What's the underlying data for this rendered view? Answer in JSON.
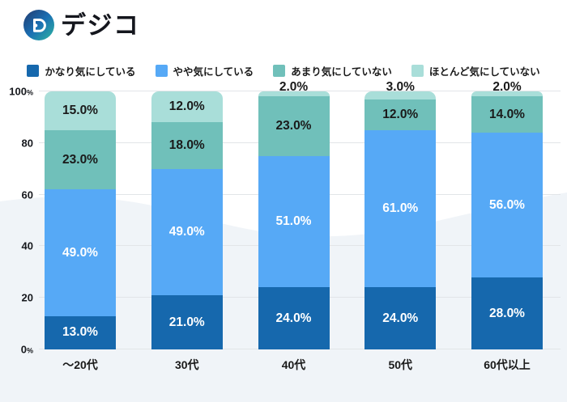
{
  "logo": {
    "text": "デジコ",
    "icon": "digico-d-icon",
    "gradient": [
      "#233a6e",
      "#1a6fb3",
      "#2eb6a1"
    ]
  },
  "background": {
    "wave_color": "#f0f4f8"
  },
  "chart_data": {
    "type": "bar",
    "stacked": true,
    "orientation": "vertical",
    "categories": [
      "～20代",
      "30代",
      "40代",
      "50代",
      "60代以上"
    ],
    "series": [
      {
        "name": "かなり気にしている",
        "color": "#1668ad",
        "label_color": "#ffffff",
        "values": [
          13,
          21,
          24,
          24,
          28
        ],
        "labels": [
          "13.0%",
          "21.0%",
          "24.0%",
          "24.0%",
          "28.0%"
        ]
      },
      {
        "name": "やや気にしている",
        "color": "#56a9f6",
        "label_color": "#ffffff",
        "values": [
          49,
          49,
          51,
          61,
          56
        ],
        "labels": [
          "49.0%",
          "49.0%",
          "51.0%",
          "61.0%",
          "56.0%"
        ]
      },
      {
        "name": "あまり気にしていない",
        "color": "#70c0ba",
        "label_color": "#1a1a1a",
        "values": [
          23,
          18,
          23,
          12,
          14
        ],
        "labels": [
          "23.0%",
          "18.0%",
          "23.0%",
          "12.0%",
          "14.0%"
        ]
      },
      {
        "name": "ほとんど気にしていない",
        "color": "#a9ded9",
        "label_color": "#1a1a1a",
        "values": [
          15,
          12,
          2,
          3,
          2
        ],
        "labels": [
          "15.0%",
          "12.0%",
          "2.0%",
          "3.0%",
          "2.0%"
        ]
      }
    ],
    "ylim": [
      0,
      100
    ],
    "yticks": [
      {
        "value": 0,
        "label": "0",
        "suffix": "%"
      },
      {
        "value": 20,
        "label": "20",
        "suffix": ""
      },
      {
        "value": 40,
        "label": "40",
        "suffix": ""
      },
      {
        "value": 60,
        "label": "60",
        "suffix": ""
      },
      {
        "value": 80,
        "label": "80",
        "suffix": ""
      },
      {
        "value": 100,
        "label": "100",
        "suffix": "%"
      }
    ],
    "grid": true,
    "legend_position": "top",
    "small_value_threshold": 5
  }
}
